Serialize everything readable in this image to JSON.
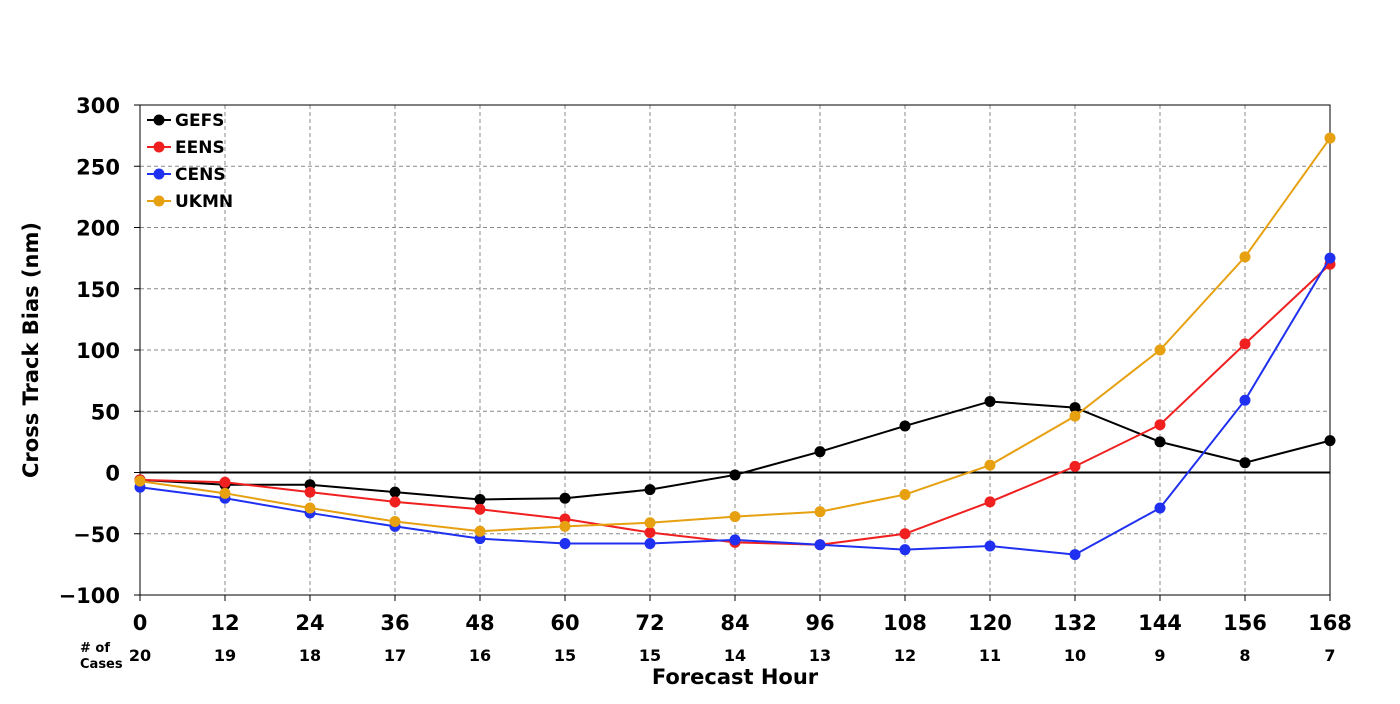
{
  "chart_data": {
    "type": "line",
    "xlabel": "Forecast Hour",
    "ylabel": "Cross Track Bias (nm)",
    "x": [
      0,
      12,
      24,
      36,
      48,
      60,
      72,
      84,
      96,
      108,
      120,
      132,
      144,
      156,
      168
    ],
    "xlim": [
      0,
      168
    ],
    "ylim": [
      -100,
      300
    ],
    "yticks": [
      -100,
      -50,
      0,
      50,
      100,
      150,
      200,
      250,
      300
    ],
    "ytick_labels": [
      "−100",
      "−50",
      "0",
      "50",
      "100",
      "150",
      "200",
      "250",
      "300"
    ],
    "grid": true,
    "legend_position": "top-left",
    "cases_label": "# of\nCases",
    "cases": [
      20,
      19,
      18,
      17,
      16,
      15,
      15,
      14,
      13,
      12,
      11,
      10,
      9,
      8,
      7
    ],
    "series": [
      {
        "name": "GEFS",
        "color": "#000000",
        "values": [
          -6,
          -10,
          -10,
          -16,
          -22,
          -21,
          -14,
          -2,
          17,
          38,
          58,
          53,
          25,
          8,
          26
        ]
      },
      {
        "name": "EENS",
        "color": "#f02020",
        "values": [
          -6,
          -8,
          -16,
          -24,
          -30,
          -38,
          -49,
          -57,
          -59,
          -50,
          -24,
          5,
          39,
          105,
          170
        ]
      },
      {
        "name": "CENS",
        "color": "#2030f0",
        "values": [
          -12,
          -21,
          -33,
          -44,
          -54,
          -58,
          -58,
          -55,
          -59,
          -63,
          -60,
          -67,
          -29,
          59,
          175
        ]
      },
      {
        "name": "UKMN",
        "color": "#e6a010",
        "values": [
          -7,
          -17,
          -29,
          -40,
          -48,
          -44,
          -41,
          -36,
          -32,
          -18,
          6,
          46,
          100,
          176,
          273
        ]
      }
    ]
  }
}
